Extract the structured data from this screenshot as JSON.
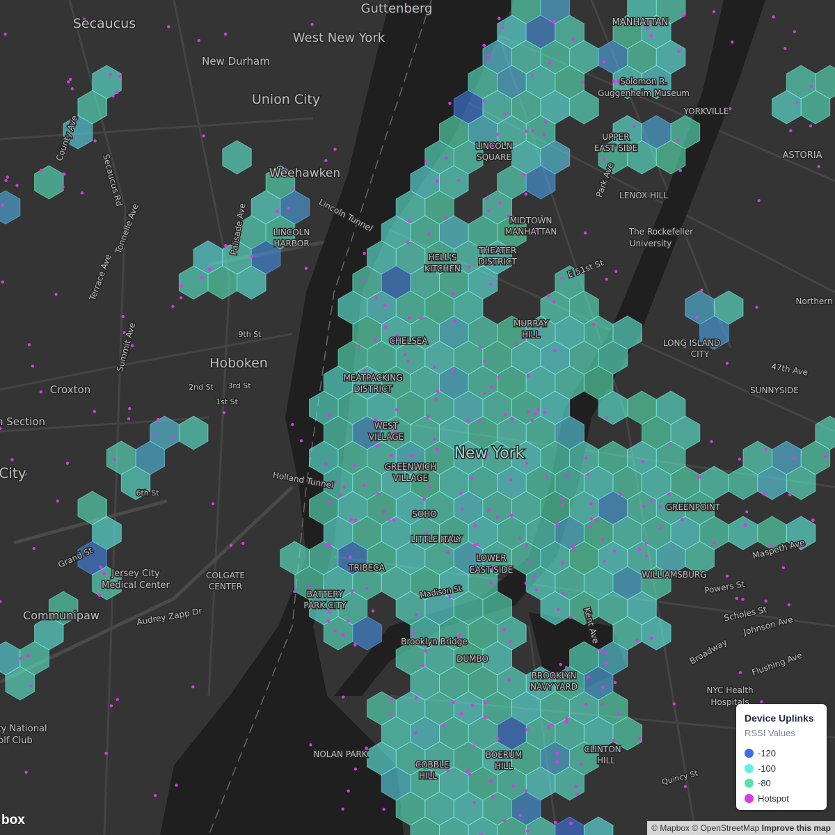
{
  "map": {
    "labels": [
      "Secaucus",
      "Guttenberg",
      "West New York",
      "New Durham",
      "Union City",
      "Weehawken",
      "Hoboken",
      "Croxton",
      "n Section",
      "City",
      "New York",
      "Jersey City",
      "Medical Center",
      "Communipaw",
      "ty National",
      "olf Club",
      "NOLAN PARK",
      "MANHATTAN",
      "YORKVILLE",
      "ASTORIA",
      "LENOX HILL",
      "LINCOLN",
      "SQUARE",
      "MIDTOWN",
      "MANHATTAN",
      "THEATER",
      "DISTRICT",
      "HELL'S",
      "KITCHEN",
      "The Rockefeller",
      "University",
      "MURRAY",
      "HILL",
      "CHELSEA",
      "MEATPACKING",
      "DISTRICT",
      "WEST",
      "VILLAGE",
      "GREENWICH",
      "VILLAGE",
      "SOHO",
      "LITTLE ITALY",
      "TRIBECA",
      "LOWER",
      "EAST SIDE",
      "BATTERY",
      "PARK CITY",
      "Brooklyn Bridge",
      "DUMBO",
      "BROOKLYN",
      "NAVY YARD",
      "COBBLE",
      "HILL",
      "BOERUM",
      "HILL",
      "CLINTON",
      "HILL",
      "LONG ISLAND",
      "CITY",
      "SUNNYSIDE",
      "GREENPOINT",
      "WILLIAMSBURG",
      "Northern",
      "NYC Health",
      "Hospitals",
      "Solomon R.",
      "Guggenheim Museum",
      "UPPER",
      "EAST SIDE",
      "COLGATE",
      "CENTER",
      "LINCOLN",
      "HARBOR",
      "Lincoln Tunnel",
      "Holland Tunnel",
      "Grand St",
      "Secaucus Rd",
      "County Ave",
      "Summit Ave",
      "Audrey Zapp Dr",
      "Broadway",
      "Flushing Ave",
      "Johnson Ave",
      "Scholes St",
      "Powers St",
      "Maspeth Ave",
      "47th Ave",
      "9th St",
      "1st St",
      "2nd St",
      "3rd St",
      "6th St",
      "Tonnelle Ave",
      "Terrace Ave",
      "Palisade Ave",
      "Park Ave",
      "E 51st St",
      "Kent Ave",
      "Madison St",
      "Quincy St"
    ]
  },
  "hexbins": {
    "rssi": [
      -95,
      -88,
      -104,
      -86,
      -110,
      -92,
      -84,
      -97,
      -112,
      -90,
      -86,
      -101,
      -93,
      -115,
      -89,
      -83,
      -98,
      -106,
      -91,
      -87,
      -108,
      -94,
      -85,
      -99,
      -117,
      -90,
      -82,
      -96,
      -103,
      -88,
      -92,
      -84,
      -109,
      -95,
      -87,
      -100,
      -114,
      -89,
      -81,
      -97,
      -105,
      -91,
      -86,
      -93,
      -111,
      -84,
      -99,
      -88,
      -107,
      -94,
      -83,
      -96,
      -102,
      -89,
      -85,
      -118,
      -92,
      -87,
      -100,
      -90,
      -97,
      -86,
      -81,
      -104,
      -93,
      -88,
      -95,
      -110,
      -84,
      -91,
      -89,
      -99,
      -106,
      -85,
      -92,
      -80,
      -101,
      -94,
      -87,
      -113,
      -94,
      -82,
      -90,
      -97,
      -88,
      -103,
      -86,
      -79,
      -96,
      -92,
      -85,
      -93,
      -100,
      -87,
      -116,
      -91,
      -84,
      -98,
      -89,
      -95,
      -102,
      -88,
      -83,
      -94,
      -90,
      -86,
      -108,
      -92,
      -81,
      -97,
      -90,
      -104,
      -87,
      -79,
      -95,
      -99,
      -88,
      -93,
      -112,
      -84,
      -86,
      -91,
      -97,
      -89,
      -82,
      -94,
      -101,
      -87,
      -90,
      -96,
      -99,
      -85,
      -92,
      -106,
      -88,
      -83,
      -95,
      -90,
      -78,
      -93,
      -88,
      -96,
      -84,
      -91,
      -102,
      -89,
      -86,
      -99,
      -94,
      -80,
      -93,
      -87,
      -110,
      -85,
      -90,
      -97,
      -82,
      -92,
      -88,
      -105,
      -81,
      -94,
      -89,
      -98,
      -86,
      -91,
      -103,
      -84,
      -96,
      -90,
      -100,
      -88,
      -92,
      -83,
      -95,
      -87,
      -90,
      -107,
      -85,
      -93,
      -87,
      -97,
      -80,
      -94,
      -89,
      -101,
      -86,
      -92,
      -98,
      -84,
      -95,
      -83,
      -91,
      -88,
      -104,
      -90,
      -85,
      -96,
      -82,
      -99,
      -89,
      -102,
      -87,
      -93,
      -79,
      -94,
      -111,
      -88,
      -91,
      -86,
      -97,
      -85,
      -96,
      -90,
      -84,
      -99,
      -88,
      -93,
      -106,
      -81,
      -92,
      -88,
      -101,
      -86,
      -95,
      -83,
      -97,
      -90,
      -87,
      -114,
      -84,
      -98,
      -89,
      -105,
      -91,
      -87,
      -94,
      -80,
      -100,
      -93,
      -103,
      -90,
      -85,
      -96,
      -88,
      -92,
      -82,
      -99,
      -86,
      -95,
      -88,
      -94,
      -108,
      -84,
      -97,
      -89,
      -93,
      -101,
      -90,
      -85,
      -96,
      -82,
      -91,
      -99,
      -87,
      -115,
      -94,
      -88,
      -83,
      -92,
      -90,
      -100,
      -86,
      -93,
      -81,
      -96,
      -89,
      -104,
      -92,
      -87,
      -85,
      -93,
      -97,
      -88,
      -110,
      -84,
      -95,
      -90,
      -98,
      -86,
      -99,
      -87,
      -92,
      -83,
      -94,
      -102,
      -88,
      -91,
      -117,
      -89,
      -91,
      -96,
      -85,
      -100,
      -89,
      -93,
      -86,
      -97,
      -84,
      -108,
      -87,
      -104,
      -90,
      -95,
      -82,
      -88,
      -99,
      -92,
      -86,
      -94,
      -98,
      -89,
      -113,
      -86,
      -92,
      -96,
      -84,
      -90,
      -119,
      -101
    ]
  },
  "legend": {
    "title": "Device Uplinks",
    "subtitle": "RSSI Values",
    "items": [
      {
        "value": -120,
        "color": "#3d6fe0"
      },
      {
        "value": -100,
        "color": "#62efe6"
      },
      {
        "value": -80,
        "color": "#55e0ae"
      }
    ],
    "hotspot": {
      "label": "Hotspot",
      "color": "#d63be6"
    }
  },
  "attribution": [
    "© Mapbox",
    "© OpenStreetMap",
    "Improve this map"
  ],
  "logo": "box"
}
